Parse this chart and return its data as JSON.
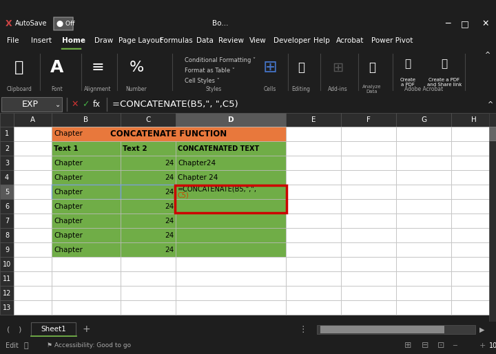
{
  "title_bar_color": "#1e1e1e",
  "ribbon_bg": "#1e1e1e",
  "formula_bar_bg": "#2d2d2d",
  "sheet_bg": "#ffffff",
  "header_bg": "#2d2d2d",
  "orange_header_bg": "#E8783C",
  "green_cell_bg": "#70AD47",
  "formula_text": "=CONCATENATE(B5,\", \",C5)",
  "name_box_text": "EXP",
  "col_labels": [
    "",
    "A",
    "B",
    "C",
    "D",
    "E",
    "F",
    "G",
    "H"
  ],
  "row_count": 13,
  "formula_line1": "=CONCATENATE(B5,\",\",",
  "formula_line2": "C5)",
  "row1_text": "CONCATENATE FUNCTION",
  "row2_b": "Text 1",
  "row2_c": "Text 2",
  "row2_d": "CONCATENATED TEXT",
  "d3_text": "Chapter24",
  "d4_text": "Chapter 24"
}
